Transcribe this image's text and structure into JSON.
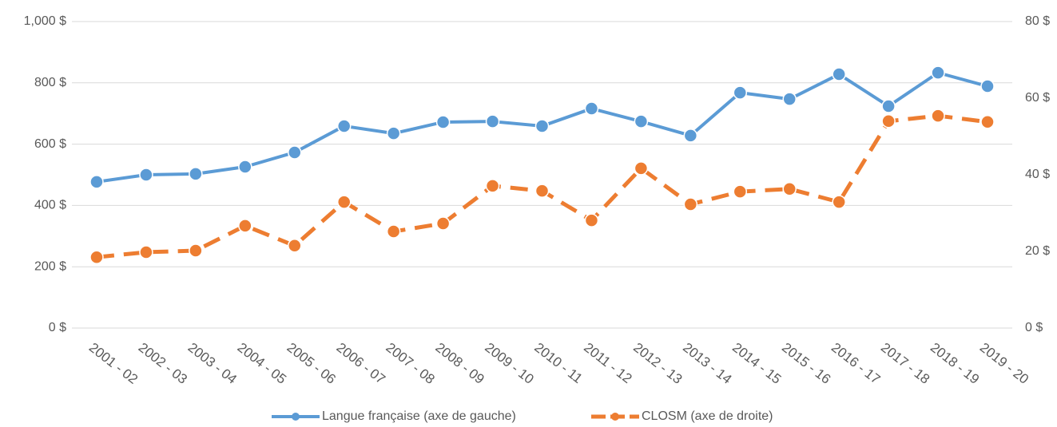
{
  "chart_data": {
    "type": "line",
    "categories": [
      "2001 - 02",
      "2002 - 03",
      "2003 - 04",
      "2004 - 05",
      "2005 - 06",
      "2006 - 07",
      "2007 - 08",
      "2008 - 09",
      "2009 - 10",
      "2010 - 11",
      "2011 - 12",
      "2012 - 13",
      "2013 - 14",
      "2014 - 15",
      "2015 - 16",
      "2016 - 17",
      "2017 - 18",
      "2018 - 19",
      "2019 - 20"
    ],
    "series": [
      {
        "name": "Langue française (axe de gauche)",
        "color": "#5b9bd5",
        "axis": "y",
        "values": [
          477,
          500,
          503,
          526,
          573,
          659,
          635,
          672,
          674,
          659,
          716,
          674,
          628,
          768,
          747,
          828,
          724,
          833,
          789
        ]
      },
      {
        "name": "CLOSM (axe de droite)",
        "color": "#ed7d31",
        "axis": "y2",
        "dashed": true,
        "values": [
          18.5,
          19.8,
          20.2,
          26.7,
          21.5,
          32.9,
          25.2,
          27.3,
          37.1,
          35.8,
          28.1,
          41.7,
          32.3,
          35.6,
          36.3,
          32.9,
          54.0,
          55.4,
          53.8
        ]
      }
    ],
    "ylim": [
      0,
      1000
    ],
    "yticks": [
      {
        "value": 0,
        "label": "0 $"
      },
      {
        "value": 200,
        "label": "200 $"
      },
      {
        "value": 400,
        "label": "400 $"
      },
      {
        "value": 600,
        "label": "600 $"
      },
      {
        "value": 800,
        "label": "800 $"
      },
      {
        "value": 1000,
        "label": "1,000 $"
      }
    ],
    "y2lim": [
      0,
      80
    ],
    "y2ticks": [
      {
        "value": 0,
        "label": "0 $"
      },
      {
        "value": 20,
        "label": "20 $"
      },
      {
        "value": 40,
        "label": "40 $"
      },
      {
        "value": 60,
        "label": "60 $"
      },
      {
        "value": 80,
        "label": "80 $"
      }
    ],
    "grid": true,
    "legend": "bottom"
  }
}
